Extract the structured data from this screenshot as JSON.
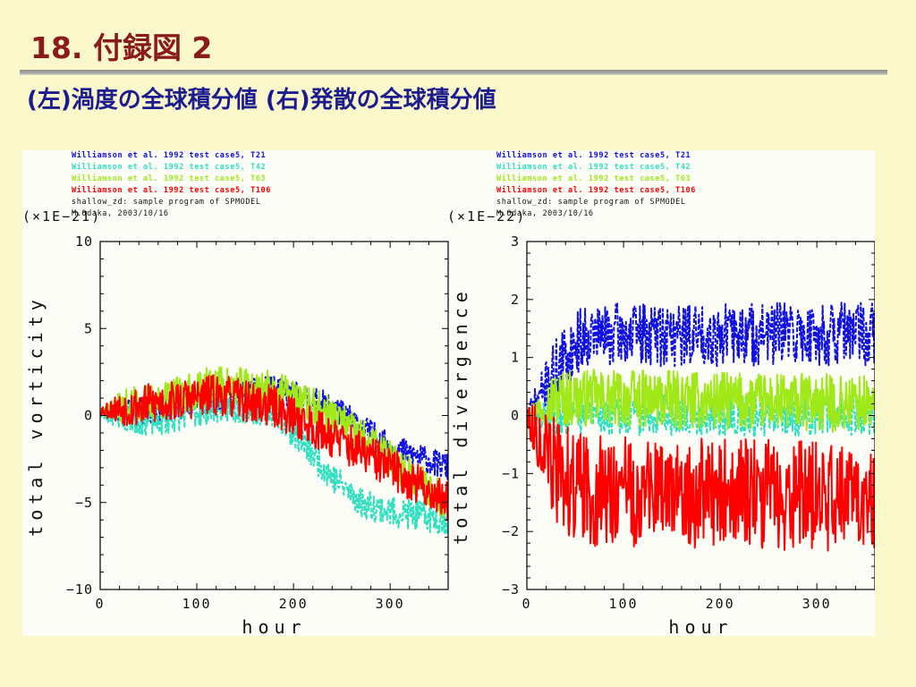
{
  "slide": {
    "title": "18. 付録図 2",
    "subtitle": "(左)渦度の全球積分値 (右)発散の全球積分値"
  },
  "chart_data": [
    {
      "type": "line",
      "title": "",
      "xlabel": "hour",
      "ylabel": "total vorticity",
      "scale_label": "(×1E−21)",
      "xlim": [
        0,
        360
      ],
      "ylim": [
        -10,
        10
      ],
      "xticks": [
        0,
        100,
        200,
        300
      ],
      "yticks": [
        -10,
        -5,
        0,
        5,
        10
      ],
      "ytick_labels": [
        "−10",
        "−5",
        "0",
        "5",
        "10"
      ],
      "legend": [
        {
          "text": "Williamson et al. 1992 test case5, T21",
          "color": "#1010e0"
        },
        {
          "text": "Williamson et al. 1992 test case5, T42",
          "color": "#30e0c0"
        },
        {
          "text": "Williamson et al. 1992 test case5, T63",
          "color": "#a0e818"
        },
        {
          "text": "Williamson et al. 1992 test case5, T106",
          "color": "#ff0000"
        }
      ],
      "credit_lines": [
        "shallow_zd: sample program of SPMODEL",
        "M.Odaka, 2003/10/16"
      ],
      "series": [
        {
          "name": "T21",
          "color": "#1010e0",
          "dashed": true,
          "noise": 0.8,
          "seed": 11,
          "trend_x": [
            0,
            60,
            120,
            180,
            240,
            300,
            360
          ],
          "trend_y": [
            0.2,
            0.3,
            1.0,
            1.5,
            0.5,
            -1.8,
            -3.0
          ]
        },
        {
          "name": "T42",
          "color": "#30e0c0",
          "dashed": true,
          "noise": 0.9,
          "seed": 23,
          "trend_x": [
            0,
            60,
            120,
            180,
            240,
            270,
            300,
            360
          ],
          "trend_y": [
            0.0,
            -0.3,
            0.5,
            0.3,
            -3.5,
            -5.0,
            -5.5,
            -6.0
          ]
        },
        {
          "name": "T63",
          "color": "#a0e818",
          "dashed": false,
          "noise": 1.1,
          "seed": 37,
          "trend_x": [
            0,
            60,
            120,
            180,
            240,
            300,
            360
          ],
          "trend_y": [
            0.3,
            0.8,
            1.8,
            1.5,
            0.0,
            -2.5,
            -5.0
          ]
        },
        {
          "name": "T106",
          "color": "#ff0000",
          "dashed": false,
          "noise": 1.2,
          "seed": 53,
          "trend_x": [
            0,
            60,
            120,
            180,
            240,
            300,
            360
          ],
          "trend_y": [
            0.3,
            0.7,
            1.2,
            0.5,
            -1.2,
            -3.0,
            -5.0
          ]
        }
      ]
    },
    {
      "type": "line",
      "title": "",
      "xlabel": "hour",
      "ylabel": "total divergence",
      "scale_label": "(×1E−22)",
      "xlim": [
        0,
        360
      ],
      "ylim": [
        -3,
        3
      ],
      "xticks": [
        0,
        100,
        200,
        300
      ],
      "yticks": [
        -3,
        -2,
        -1,
        0,
        1,
        2,
        3
      ],
      "ytick_labels": [
        "−3",
        "−2",
        "−1",
        "0",
        "1",
        "2",
        "3"
      ],
      "legend": [
        {
          "text": "Williamson et al. 1992 test case5, T21",
          "color": "#1010e0"
        },
        {
          "text": "Williamson et al. 1992 test case5, T42",
          "color": "#30e0c0"
        },
        {
          "text": "Williamson et al. 1992 test case5, T63",
          "color": "#a0e818"
        },
        {
          "text": "Williamson et al. 1992 test case5, T106",
          "color": "#ff0000"
        }
      ],
      "credit_lines": [
        "shallow_zd: sample program of SPMODEL",
        "M.Odaka, 2003/10/16"
      ],
      "series": [
        {
          "name": "T21",
          "color": "#1010e0",
          "dashed": true,
          "noise": 0.55,
          "seed": 71,
          "trend_x": [
            0,
            30,
            60,
            360
          ],
          "trend_y": [
            0.0,
            0.8,
            1.4,
            1.4
          ]
        },
        {
          "name": "T42",
          "color": "#30e0c0",
          "dashed": true,
          "noise": 0.35,
          "seed": 83,
          "trend_x": [
            0,
            60,
            360
          ],
          "trend_y": [
            0.0,
            0.0,
            0.0
          ]
        },
        {
          "name": "T63",
          "color": "#a0e818",
          "dashed": false,
          "noise": 0.5,
          "seed": 97,
          "trend_x": [
            0,
            30,
            60,
            360
          ],
          "trend_y": [
            0.0,
            0.3,
            0.3,
            0.2
          ]
        },
        {
          "name": "T106",
          "color": "#ff0000",
          "dashed": false,
          "noise": 0.95,
          "seed": 113,
          "trend_x": [
            0,
            30,
            60,
            360
          ],
          "trend_y": [
            0.0,
            -1.0,
            -1.3,
            -1.4
          ]
        }
      ]
    }
  ]
}
